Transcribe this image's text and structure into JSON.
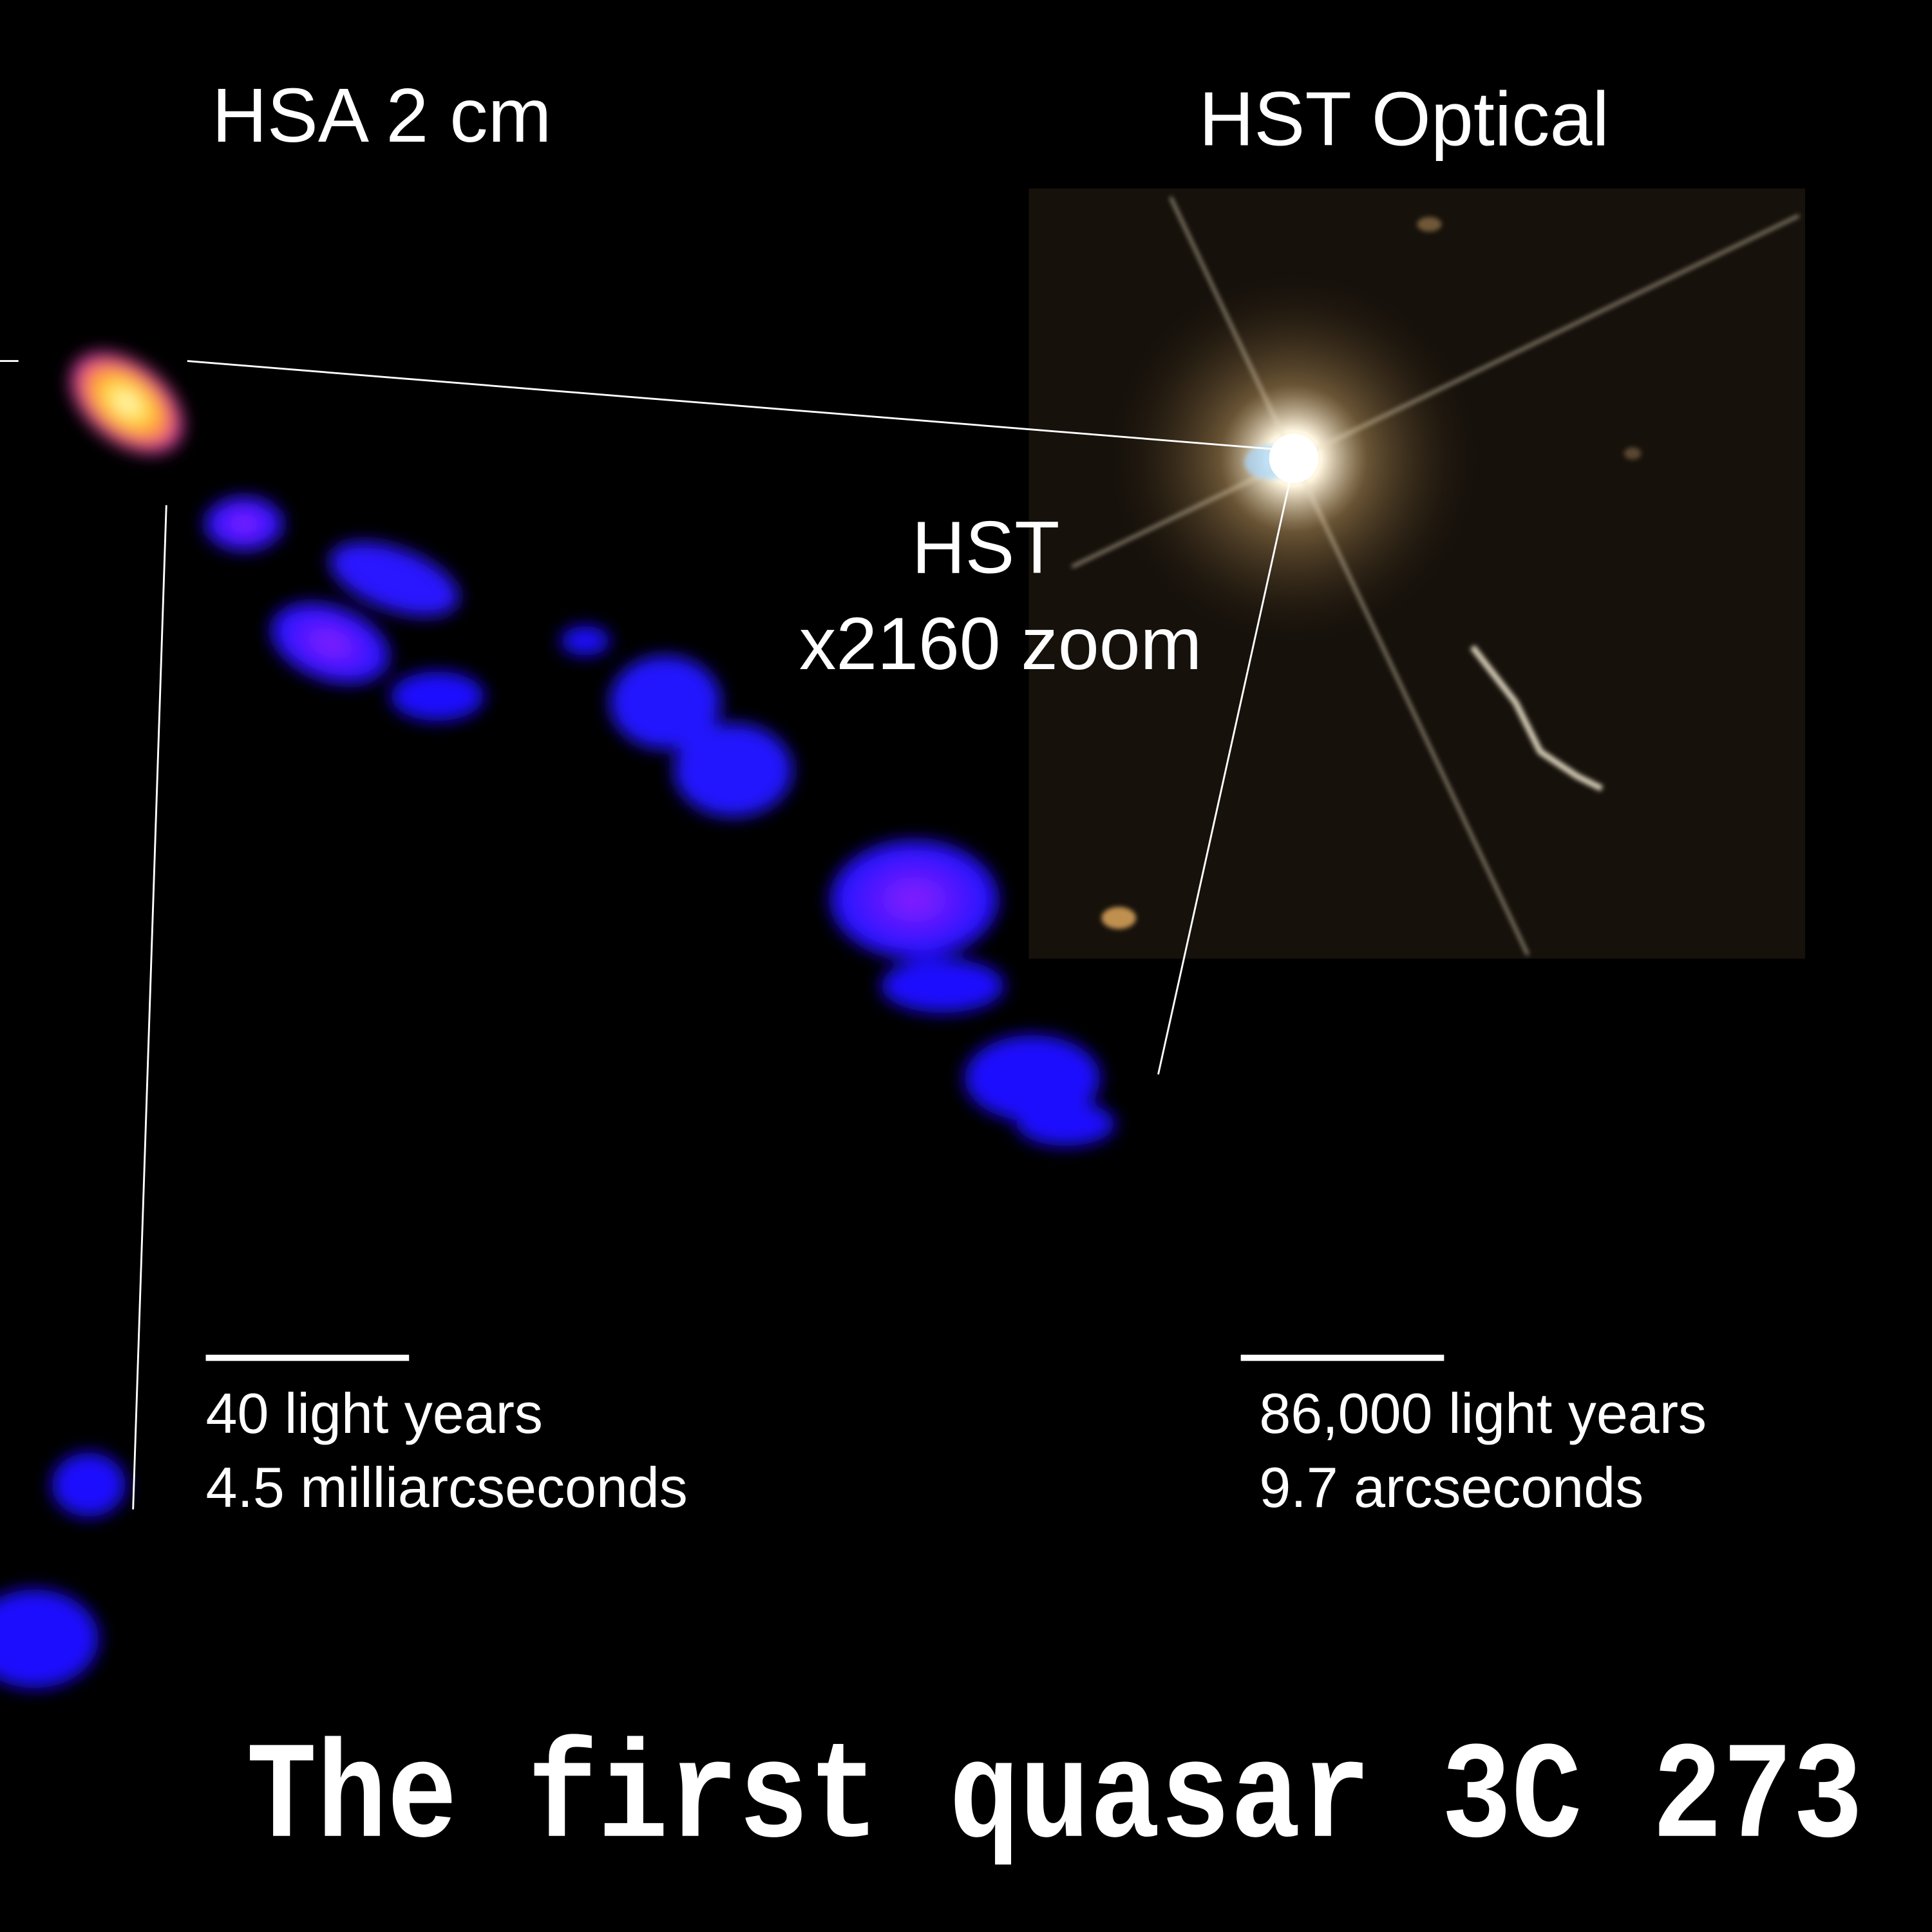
{
  "panels": {
    "left_title": "HSA 2 cm",
    "right_title": "HST Optical"
  },
  "zoom_label": {
    "line1": "HST",
    "line2": "x2160 zoom"
  },
  "scale_bars": {
    "left": {
      "line1": "40 light years",
      "line2": "4.5 milliarcseconds"
    },
    "right": {
      "line1": "86,000 light years",
      "line2": "9.7 arcseconds"
    }
  },
  "title": "The first quasar 3C 273"
}
